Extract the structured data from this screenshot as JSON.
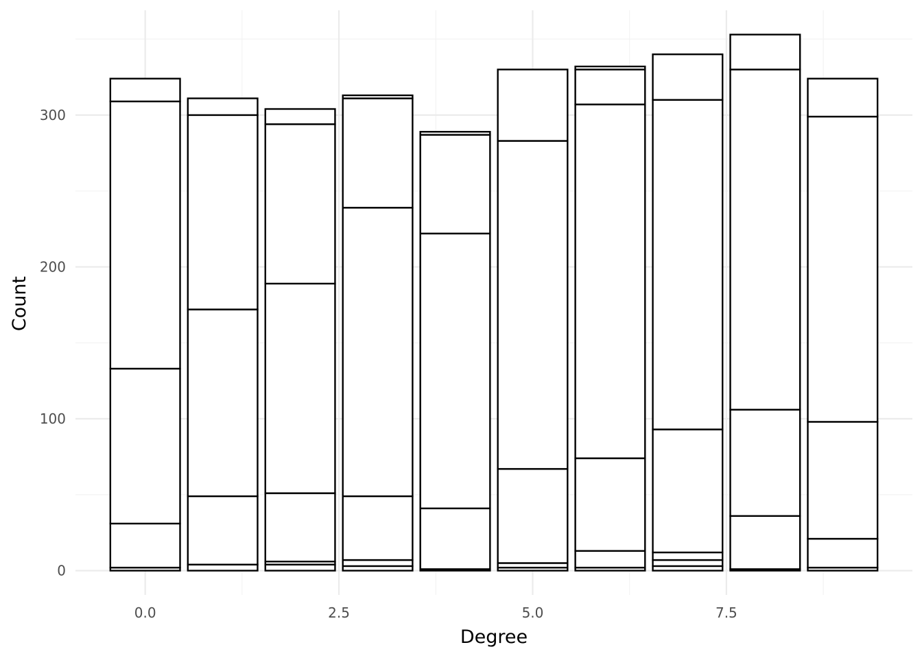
{
  "chart_data": {
    "type": "bar",
    "stacked": true,
    "title": "",
    "xlabel": "Degree",
    "ylabel": "Count",
    "x": [
      0,
      1,
      2,
      3,
      4,
      5,
      6,
      7,
      8,
      9
    ],
    "stack_boundaries": [
      [
        0,
        2,
        31,
        133,
        309,
        324
      ],
      [
        0,
        4,
        49,
        172,
        300,
        311
      ],
      [
        0,
        4,
        6,
        51,
        189,
        294,
        304
      ],
      [
        0,
        3,
        7,
        49,
        239,
        311,
        313
      ],
      [
        0,
        1,
        41,
        222,
        287,
        289
      ],
      [
        0,
        2,
        5,
        67,
        283,
        330
      ],
      [
        0,
        2,
        13,
        74,
        307,
        330,
        332
      ],
      [
        0,
        3,
        7,
        12,
        93,
        310,
        340
      ],
      [
        0,
        1,
        36,
        106,
        330,
        353
      ],
      [
        0,
        2,
        21,
        98,
        299,
        324
      ]
    ],
    "xlim": [
      -0.9,
      9.9
    ],
    "ylim": [
      -16,
      369
    ],
    "x_ticks": [
      0,
      2.5,
      5,
      7.5
    ],
    "x_tick_labels": [
      "0.0",
      "2.5",
      "5.0",
      "7.5"
    ],
    "y_ticks": [
      0,
      100,
      200,
      300
    ],
    "y_tick_labels": [
      "0",
      "100",
      "200",
      "300"
    ],
    "bar_fill": "#ffffff",
    "bar_outline": "#000000",
    "grid": true,
    "legend": "none"
  }
}
